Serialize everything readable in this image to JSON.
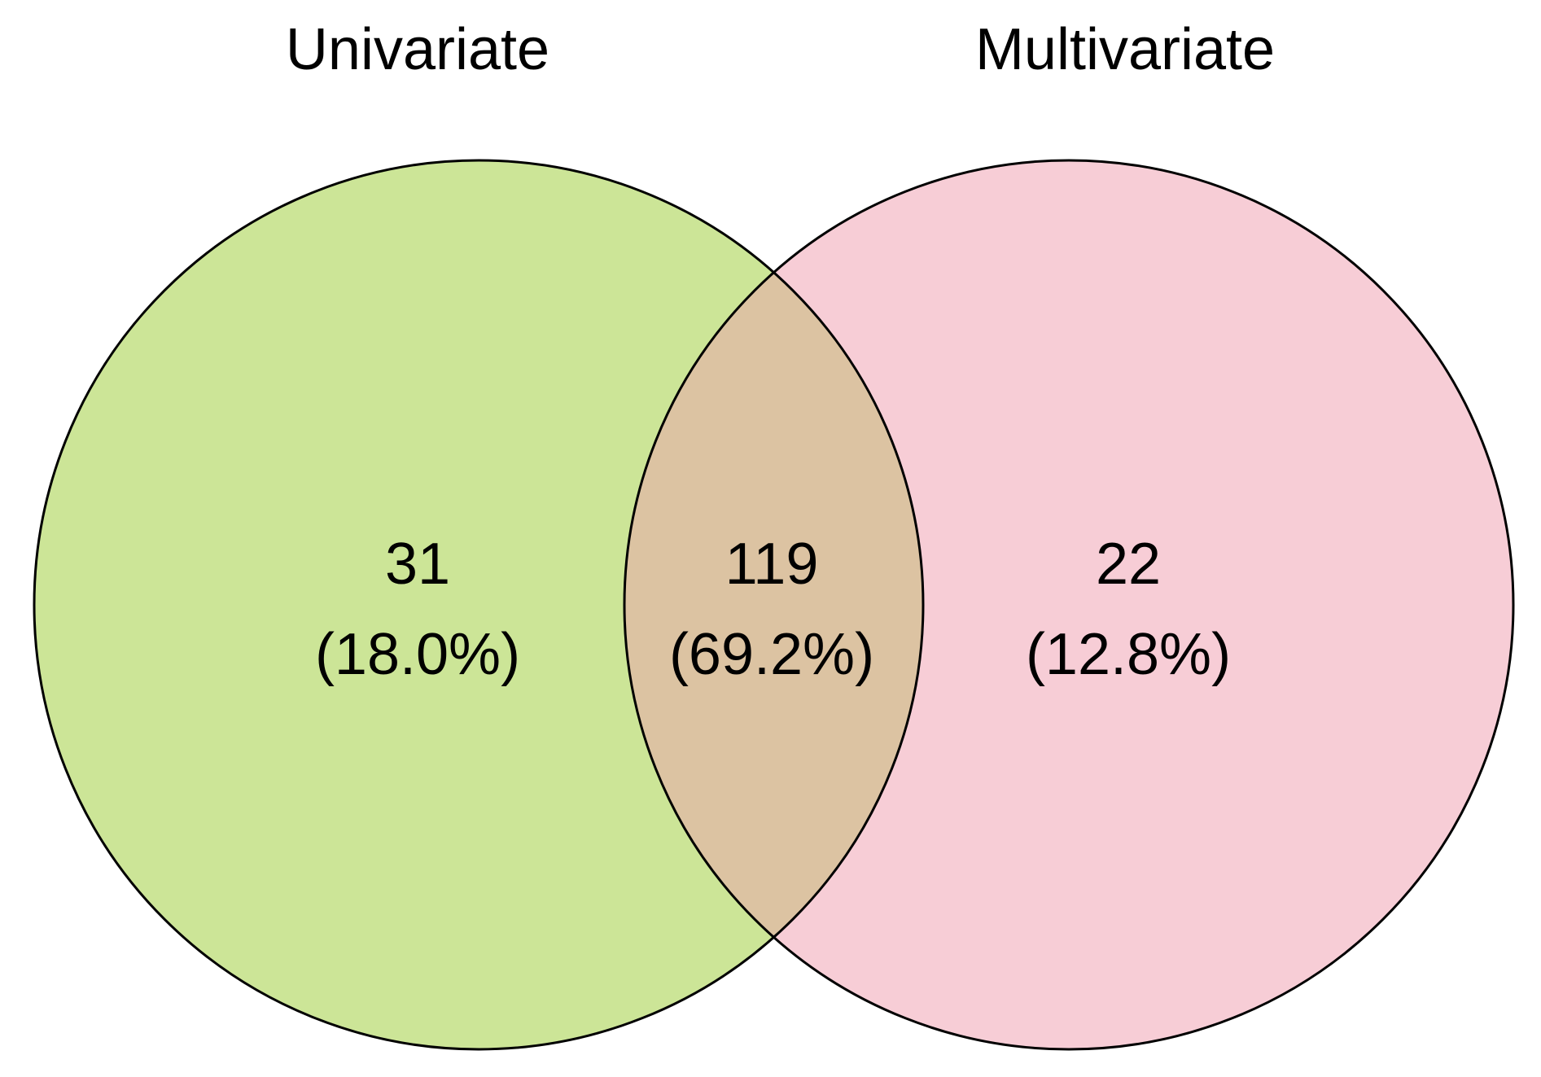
{
  "chart_data": {
    "type": "venn",
    "sets": [
      {
        "name": "Univariate",
        "color": "#cce597"
      },
      {
        "name": "Multivariate",
        "color": "#f7cdd6"
      }
    ],
    "overlap_color": "#dcc3a2",
    "values": [
      31,
      119,
      22
    ],
    "percentages": [
      18.0,
      69.2,
      12.8
    ],
    "percentage_labels": [
      "(18.0%)",
      "(69.2%)",
      "(12.8%)"
    ]
  }
}
